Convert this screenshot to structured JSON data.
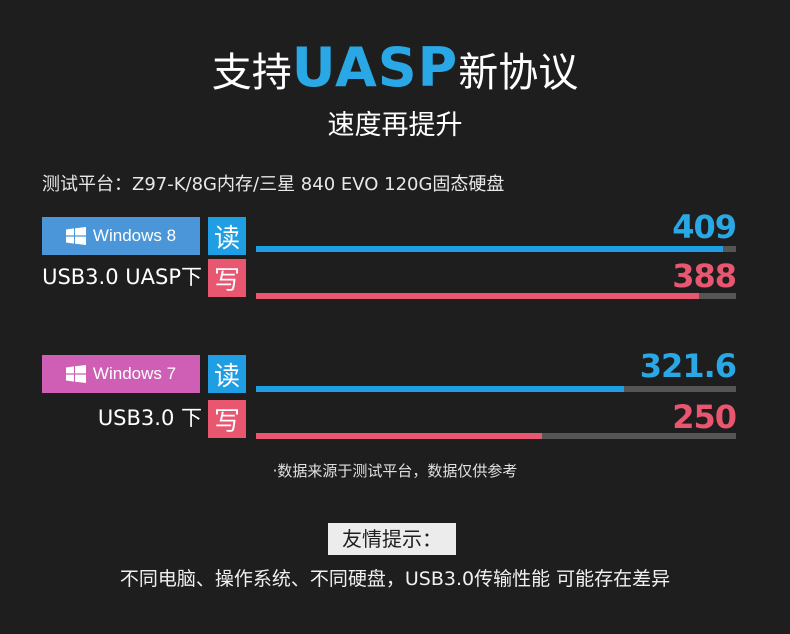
{
  "header": {
    "title_prefix": "支持",
    "title_highlight": "UASP",
    "title_suffix": "新协议",
    "subtitle": "速度再提升",
    "platform": "测试平台：Z97-K/8G内存/三星 840 EVO 120G固态硬盘"
  },
  "colors": {
    "background": "#1e1e1e",
    "read": "#1f9ee3",
    "write": "#e8566f",
    "track": "#555555",
    "win8_badge": "#4a96d8",
    "win7_badge": "#cf5fb4"
  },
  "groups": [
    {
      "os": "Windows 8",
      "mode": "USB3.0 UASP下",
      "read_label": "读",
      "write_label": "写"
    },
    {
      "os": "Windows 7",
      "mode": "USB3.0 下",
      "read_label": "读",
      "write_label": "写"
    }
  ],
  "chart_data": {
    "type": "bar",
    "orientation": "horizontal",
    "max": 420,
    "categories": [
      "Windows 8 / USB3.0 UASP下",
      "Windows 7 / USB3.0 下"
    ],
    "series": [
      {
        "name": "读",
        "values": [
          409,
          321.6
        ],
        "labels": [
          "409",
          "321.6"
        ]
      },
      {
        "name": "写",
        "values": [
          388,
          250
        ],
        "labels": [
          "388",
          "250"
        ]
      }
    ]
  },
  "footnote": "·数据来源于测试平台，数据仅供参考",
  "tip": {
    "label": "友情提示：",
    "text": "不同电脑、操作系统、不同硬盘，USB3.0传输性能 可能存在差异"
  }
}
